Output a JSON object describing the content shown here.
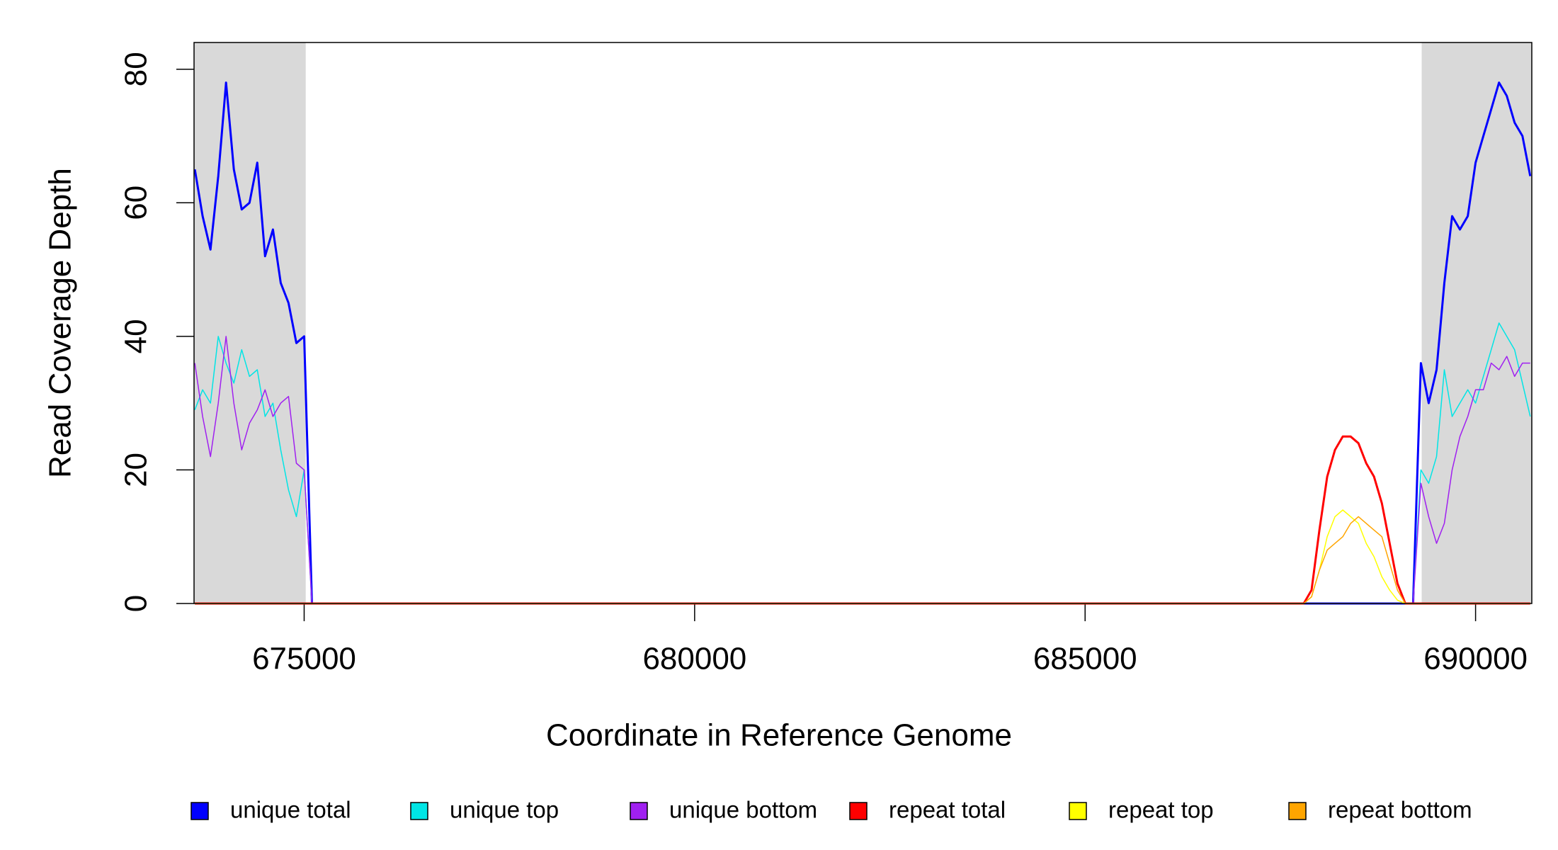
{
  "chart_data": {
    "type": "line",
    "y_label": "Read Coverage Depth",
    "x_label": "Coordinate in Reference Genome",
    "xlim": [
      673590,
      690720
    ],
    "ylim": [
      0,
      84
    ],
    "xticks": [
      675000,
      680000,
      685000,
      690000
    ],
    "yticks": [
      0,
      20,
      40,
      60,
      80
    ],
    "shaded_regions": [
      [
        673590,
        675020
      ],
      [
        689310,
        690720
      ]
    ],
    "shade_color": "#d9d9d9",
    "legend": "bottom",
    "x": [
      673600,
      673700,
      673800,
      673900,
      674000,
      674100,
      674200,
      674300,
      674400,
      674500,
      674600,
      674700,
      674800,
      674900,
      675000,
      675100,
      687800,
      687900,
      688000,
      688100,
      688200,
      688300,
      688400,
      688500,
      688600,
      688700,
      688800,
      688900,
      689000,
      689100,
      689200,
      689300,
      689400,
      689500,
      689600,
      689700,
      689800,
      689900,
      690000,
      690100,
      690200,
      690300,
      690400,
      690500,
      690600,
      690700
    ],
    "series": [
      {
        "name": "unique total",
        "color": "#0000ff",
        "width": 3,
        "values": [
          65,
          58,
          53,
          64,
          78,
          65,
          59,
          60,
          66,
          52,
          56,
          48,
          45,
          39,
          40,
          0,
          0,
          0,
          0,
          0,
          0,
          0,
          0,
          0,
          0,
          0,
          0,
          0,
          0,
          0,
          0,
          36,
          30,
          35,
          48,
          58,
          56,
          58,
          66,
          70,
          74,
          78,
          76,
          72,
          70,
          64
        ]
      },
      {
        "name": "unique top",
        "color": "#00e5e5",
        "width": 1.5,
        "values": [
          29,
          32,
          30,
          40,
          36,
          33,
          38,
          34,
          35,
          28,
          30,
          23,
          17,
          13,
          20,
          0,
          0,
          0,
          0,
          0,
          0,
          0,
          0,
          0,
          0,
          0,
          0,
          0,
          0,
          0,
          0,
          20,
          18,
          22,
          35,
          28,
          30,
          32,
          30,
          34,
          38,
          42,
          40,
          38,
          33,
          28
        ]
      },
      {
        "name": "unique bottom",
        "color": "#a020f0",
        "width": 1.5,
        "values": [
          36,
          28,
          22,
          30,
          40,
          30,
          23,
          27,
          29,
          32,
          28,
          30,
          31,
          21,
          20,
          0,
          0,
          0,
          0,
          0,
          0,
          0,
          0,
          0,
          0,
          0,
          0,
          0,
          0,
          0,
          0,
          18,
          13,
          9,
          12,
          20,
          25,
          28,
          32,
          32,
          36,
          35,
          37,
          34,
          36,
          36
        ]
      },
      {
        "name": "repeat total",
        "color": "#ff0000",
        "width": 3,
        "values": [
          0,
          0,
          0,
          0,
          0,
          0,
          0,
          0,
          0,
          0,
          0,
          0,
          0,
          0,
          0,
          0,
          0,
          2,
          11,
          19,
          23,
          25,
          25,
          24,
          21,
          19,
          15,
          9,
          3,
          0,
          0,
          0,
          0,
          0,
          0,
          0,
          0,
          0,
          0,
          0,
          0,
          0,
          0,
          0,
          0,
          0
        ]
      },
      {
        "name": "repeat top",
        "color": "#ffff00",
        "width": 1.5,
        "values": [
          0,
          0,
          0,
          0,
          0,
          0,
          0,
          0,
          0,
          0,
          0,
          0,
          0,
          0,
          0,
          0,
          0,
          1,
          5,
          10,
          13,
          14,
          13,
          12,
          9,
          7,
          4,
          2,
          0.5,
          0,
          0,
          0,
          0,
          0,
          0,
          0,
          0,
          0,
          0,
          0,
          0,
          0,
          0,
          0,
          0,
          0
        ]
      },
      {
        "name": "repeat bottom",
        "color": "#ffa500",
        "width": 1.5,
        "values": [
          0,
          0,
          0,
          0,
          0,
          0,
          0,
          0,
          0,
          0,
          0,
          0,
          0,
          0,
          0,
          0,
          0,
          1,
          5,
          8,
          9,
          10,
          12,
          13,
          12,
          11,
          10,
          6,
          2,
          0,
          0,
          0,
          0,
          0,
          0,
          0,
          0,
          0,
          0,
          0,
          0,
          0,
          0,
          0,
          0,
          0
        ]
      }
    ]
  }
}
